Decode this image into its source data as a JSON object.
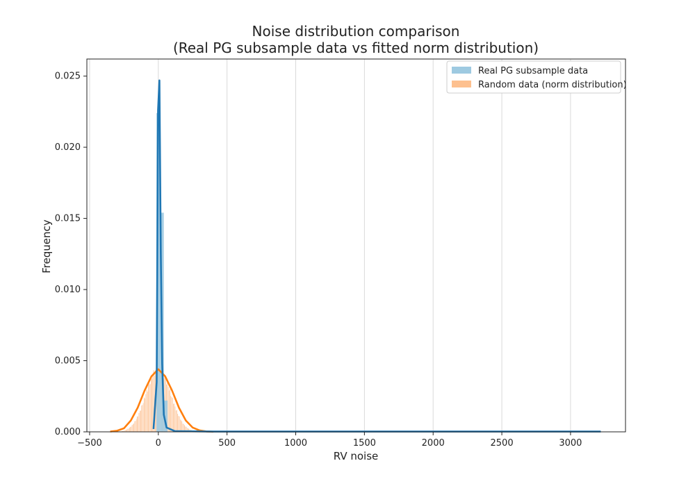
{
  "chart_data": {
    "type": "histogram+kde",
    "title_line1": "Noise distribution comparison",
    "title_line2": "(Real PG subsample data vs fitted norm distribution)",
    "xlabel": "RV noise",
    "ylabel": "Frequency",
    "xlim": [
      -520,
      3400
    ],
    "ylim": [
      0,
      0.0262
    ],
    "xticks": [
      -500,
      0,
      500,
      1000,
      1500,
      2000,
      2500,
      3000
    ],
    "yticks": [
      0.0,
      0.005,
      0.01,
      0.015,
      0.02,
      0.025
    ],
    "xtick_labels": [
      "−500",
      "0",
      "500",
      "1000",
      "1500",
      "2000",
      "2500",
      "3000"
    ],
    "ytick_labels": [
      "0.000",
      "0.005",
      "0.010",
      "0.015",
      "0.020",
      "0.025"
    ],
    "grid": "vertical",
    "legend_position": "upper right",
    "colors": {
      "real": "#1f77b4",
      "random": "#ff7f0e",
      "real_bar": "#9ecae1",
      "random_bar": "#fdc08f"
    },
    "series": [
      {
        "name": "Real PG subsample data",
        "kind": "histogram",
        "bins": [
          {
            "x0": -14,
            "x1": 13,
            "value": 0.0224
          },
          {
            "x0": 13,
            "x1": 40,
            "value": 0.0154
          },
          {
            "x0": 40,
            "x1": 67,
            "value": 0.0022
          }
        ],
        "kde": [
          [
            -35,
            0.0002
          ],
          [
            -12,
            0.0035
          ],
          [
            -2,
            0.0226
          ],
          [
            8,
            0.0247
          ],
          [
            18,
            0.0125
          ],
          [
            28,
            0.0048
          ],
          [
            40,
            0.0012
          ],
          [
            60,
            0.0003
          ],
          [
            120,
            5e-05
          ],
          [
            400,
            2e-05
          ],
          [
            1000,
            2e-05
          ],
          [
            2000,
            2e-05
          ],
          [
            3000,
            2e-05
          ],
          [
            3220,
            2e-05
          ]
        ]
      },
      {
        "name": "Random data (norm distribution)",
        "kind": "histogram",
        "bin_range": [
          -350,
          400
        ],
        "bin_count": 120,
        "mean": 0,
        "std": 90,
        "peak": 0.0044,
        "kde": [
          [
            -350,
            2e-05
          ],
          [
            -300,
            8e-05
          ],
          [
            -250,
            0.00025
          ],
          [
            -200,
            0.0008
          ],
          [
            -150,
            0.0017
          ],
          [
            -100,
            0.0029
          ],
          [
            -50,
            0.0039
          ],
          [
            0,
            0.0044
          ],
          [
            50,
            0.0039
          ],
          [
            100,
            0.0029
          ],
          [
            150,
            0.0017
          ],
          [
            200,
            0.0008
          ],
          [
            250,
            0.0003
          ],
          [
            300,
            0.0001
          ],
          [
            350,
            3e-05
          ],
          [
            400,
            1e-05
          ]
        ]
      }
    ]
  }
}
